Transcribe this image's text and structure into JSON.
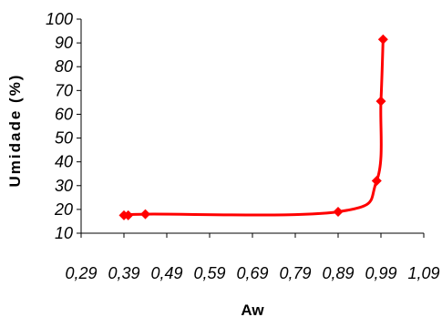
{
  "chart_data": {
    "type": "line",
    "xlabel": "Aw",
    "ylabel": "Umidade (%)",
    "xlim": [
      0.29,
      1.09
    ],
    "ylim": [
      10,
      100
    ],
    "xticks": [
      "0,29",
      "0,39",
      "0,49",
      "0,59",
      "0,69",
      "0,79",
      "0,89",
      "0,99",
      "1,09"
    ],
    "yticks": [
      "10",
      "20",
      "30",
      "40",
      "50",
      "60",
      "70",
      "80",
      "90",
      "100"
    ],
    "grid": false,
    "legend": "none",
    "series": [
      {
        "color": "#ff0000",
        "marker": "diamond",
        "points": [
          {
            "x": 0.39,
            "y": 17.5
          },
          {
            "x": 0.4,
            "y": 17.5
          },
          {
            "x": 0.44,
            "y": 18.0
          },
          {
            "x": 0.89,
            "y": 19.0
          },
          {
            "x": 0.98,
            "y": 32.0
          },
          {
            "x": 0.99,
            "y": 65.5
          },
          {
            "x": 0.995,
            "y": 91.5
          }
        ]
      }
    ]
  }
}
